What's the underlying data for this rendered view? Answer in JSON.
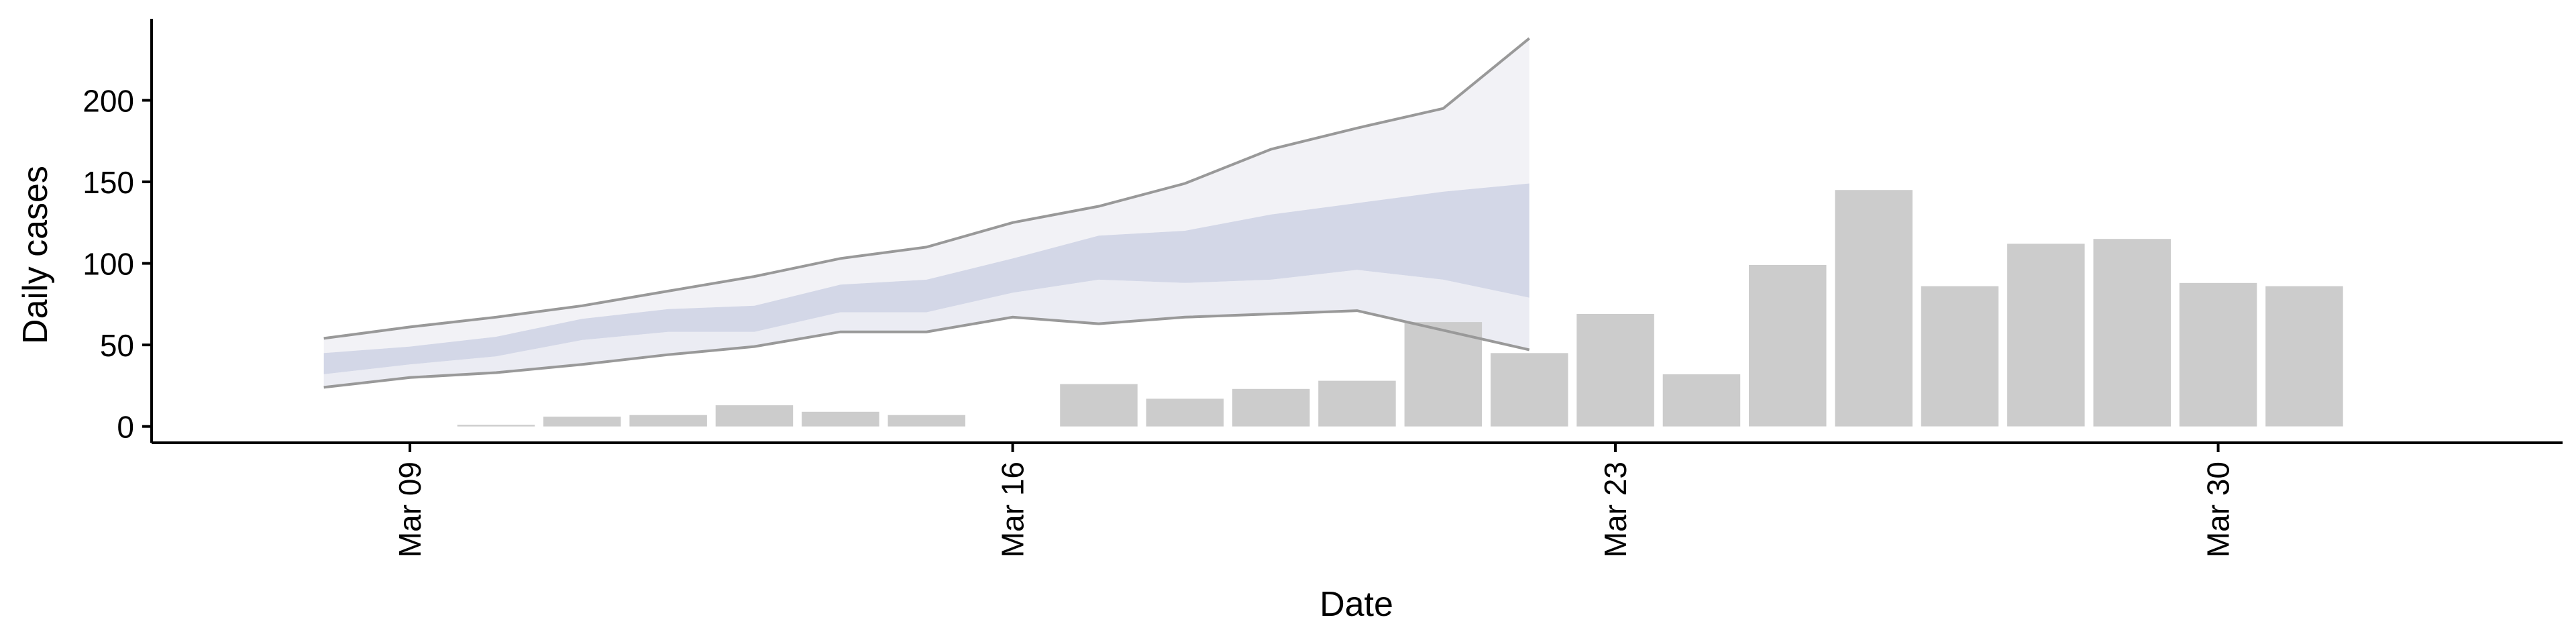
{
  "chart_data": {
    "type": "bar",
    "title": "",
    "xlabel": "Date",
    "ylabel": "Daily cases",
    "x_ticks": [
      "Mar 09",
      "Mar 16",
      "Mar 23",
      "Mar 30"
    ],
    "y_ticks": [
      "0",
      "50",
      "100",
      "150",
      "200"
    ],
    "ylim": [
      -10,
      250
    ],
    "xlim": [
      "2020-03-06",
      "2020-04-03"
    ],
    "grid": false,
    "legend": "none",
    "colors": {
      "bars": "#cccccc",
      "band_outer_upper": "#f2f2f6",
      "band_outer_lower": "#ebecf3",
      "band_inner": "#d3d7e7",
      "interval_line": "#999999",
      "axis": "#000000"
    },
    "bars": {
      "dates": [
        "2020-03-10",
        "2020-03-11",
        "2020-03-12",
        "2020-03-13",
        "2020-03-14",
        "2020-03-15",
        "2020-03-17",
        "2020-03-18",
        "2020-03-19",
        "2020-03-20",
        "2020-03-21",
        "2020-03-22",
        "2020-03-23",
        "2020-03-24",
        "2020-03-25",
        "2020-03-26",
        "2020-03-27",
        "2020-03-28",
        "2020-03-29",
        "2020-03-30",
        "2020-03-31"
      ],
      "values": [
        1,
        6,
        7,
        13,
        9,
        7,
        26,
        17,
        23,
        28,
        64,
        45,
        69,
        32,
        99,
        145,
        86,
        112,
        115,
        88,
        86
      ]
    },
    "forecast": {
      "dates": [
        "2020-03-08",
        "2020-03-09",
        "2020-03-10",
        "2020-03-11",
        "2020-03-12",
        "2020-03-13",
        "2020-03-14",
        "2020-03-15",
        "2020-03-16",
        "2020-03-17",
        "2020-03-18",
        "2020-03-19",
        "2020-03-20",
        "2020-03-21",
        "2020-03-22"
      ],
      "upper_90": [
        54,
        61,
        67,
        74,
        83,
        92,
        103,
        110,
        125,
        135,
        149,
        170,
        183,
        195,
        238
      ],
      "upper_50": [
        45,
        49,
        55,
        66,
        72,
        74,
        87,
        90,
        103,
        117,
        120,
        130,
        137,
        144,
        149
      ],
      "lower_50": [
        32,
        38,
        43,
        53,
        58,
        58,
        70,
        70,
        82,
        90,
        88,
        90,
        96,
        90,
        79
      ],
      "lower_90": [
        24,
        30,
        33,
        38,
        44,
        49,
        58,
        58,
        67,
        63,
        67,
        69,
        71,
        59,
        47
      ]
    }
  }
}
